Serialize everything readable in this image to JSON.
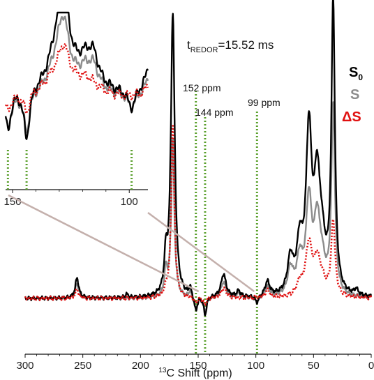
{
  "chart_data": {
    "type": "line",
    "title": "",
    "xlabel": "¹³C Shift (ppm)",
    "xlabel_sup": "13",
    "xlabel_text": "C Shift (ppm)",
    "ylabel": "",
    "x_reversed": true,
    "xlim": [
      300,
      0
    ],
    "x_ticks": [
      300,
      250,
      200,
      150,
      100,
      50,
      0
    ],
    "annotation": {
      "prefix": "t",
      "sub": "REDOR",
      "suffix": "=15.52 ms"
    },
    "markers": [
      {
        "ppm": 152,
        "label": "152 ppm"
      },
      {
        "ppm": 144,
        "label": "144 ppm"
      },
      {
        "ppm": 99,
        "label": "99 ppm"
      }
    ],
    "legend": {
      "placement": "right",
      "entries": [
        {
          "key": "S0",
          "text": "S",
          "sub": "0",
          "color": "#000000"
        },
        {
          "key": "S",
          "text": "S",
          "sub": "",
          "color": "#8c8c8c"
        },
        {
          "key": "dS",
          "text": "ΔS",
          "sub": "",
          "color": "#e01010"
        }
      ]
    },
    "series": [
      {
        "name": "S0",
        "color": "#000000",
        "style": "solid",
        "peaks": [
          [
            255,
            0.07,
            1.8
          ],
          [
            212,
            0.012,
            1.5
          ],
          [
            178,
            0.12,
            1.6
          ],
          [
            172,
            0.98,
            2.0
          ],
          [
            157,
            0.03,
            1.3
          ],
          [
            128,
            0.08,
            2.6
          ],
          [
            115,
            0.02,
            2.0
          ],
          [
            90,
            0.05,
            2.5
          ],
          [
            70,
            0.12,
            3.0
          ],
          [
            62,
            0.16,
            3.0
          ],
          [
            54,
            0.55,
            3.0
          ],
          [
            47,
            0.33,
            3.0
          ],
          [
            33,
            1.0,
            1.8
          ],
          [
            43,
            0.15,
            4.0
          ],
          [
            13,
            0.02,
            2.0
          ]
        ],
        "dips": [
          [
            152,
            0.055,
            1.5
          ],
          [
            144,
            0.065,
            1.5
          ],
          [
            99,
            0.025,
            2.0
          ]
        ]
      },
      {
        "name": "S",
        "color": "#8c8c8c",
        "style": "solid",
        "peaks": [
          [
            255,
            0.05,
            1.8
          ],
          [
            178,
            0.09,
            1.6
          ],
          [
            172,
            0.55,
            1.6
          ],
          [
            157,
            0.025,
            1.3
          ],
          [
            128,
            0.055,
            2.6
          ],
          [
            115,
            0.015,
            2.0
          ],
          [
            90,
            0.035,
            2.5
          ],
          [
            70,
            0.09,
            3.0
          ],
          [
            62,
            0.12,
            3.0
          ],
          [
            54,
            0.32,
            3.0
          ],
          [
            47,
            0.22,
            3.0
          ],
          [
            33,
            0.65,
            1.8
          ],
          [
            43,
            0.1,
            4.0
          ]
        ],
        "dips": [
          [
            152,
            0.045,
            1.5
          ],
          [
            144,
            0.05,
            1.5
          ],
          [
            99,
            0.02,
            2.0
          ]
        ]
      },
      {
        "name": "dS",
        "color": "#e01010",
        "style": "dotted",
        "peaks": [
          [
            255,
            0.03,
            1.8
          ],
          [
            172,
            0.6,
            1.6
          ],
          [
            178,
            0.02,
            1.6
          ],
          [
            128,
            0.035,
            2.6
          ],
          [
            90,
            0.025,
            2.5
          ],
          [
            62,
            0.04,
            3.0
          ],
          [
            54,
            0.18,
            3.5
          ],
          [
            47,
            0.1,
            3.0
          ],
          [
            33,
            0.26,
            2.0
          ],
          [
            43,
            0.05,
            4.0
          ]
        ],
        "dips": [
          [
            152,
            0.02,
            1.5
          ],
          [
            144,
            0.025,
            1.5
          ]
        ]
      }
    ],
    "inset": {
      "xlim": [
        153,
        92
      ],
      "x_ticks": [
        150,
        100
      ],
      "markers": [
        152,
        144,
        99
      ]
    }
  }
}
